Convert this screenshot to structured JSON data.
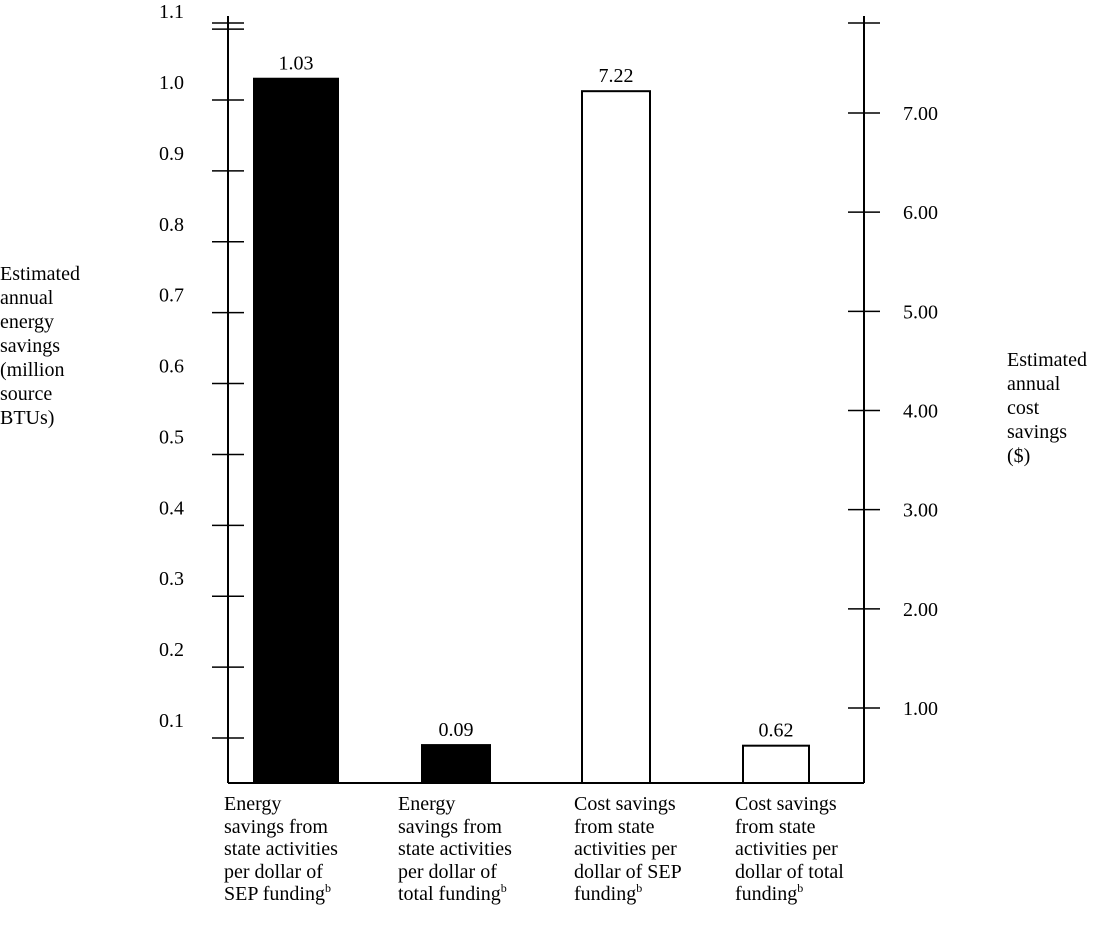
{
  "chart_data": {
    "type": "bar",
    "categories": [
      {
        "lines": [
          "Energy",
          "savings from",
          "state activities",
          "per dollar of"
        ],
        "last": "SEP funding",
        "sup": "b"
      },
      {
        "lines": [
          "Energy",
          "savings from",
          "state activities",
          "per dollar of"
        ],
        "last": "total funding",
        "sup": "b"
      },
      {
        "lines": [
          "Cost savings",
          "from state",
          "activities per",
          "dollar of SEP"
        ],
        "last": "funding",
        "sup": "b"
      },
      {
        "lines": [
          "Cost savings",
          "from state",
          "activities per",
          "dollar of total"
        ],
        "last": "funding",
        "sup": "b"
      }
    ],
    "values": [
      1.03,
      0.09,
      7.22,
      0.62
    ],
    "value_labels": [
      "1.03",
      "0.09",
      "7.22",
      "0.62"
    ],
    "bar_axis": [
      "left",
      "left",
      "right",
      "right"
    ],
    "bar_fill": [
      "#000000",
      "#000000",
      "#ffffff",
      "#ffffff"
    ],
    "left_axis": {
      "label": "Estimated\nannual\nenergy\nsavings\n(million\nsource\nBTUs)",
      "ticks": [
        0.1,
        0.2,
        0.3,
        0.4,
        0.5,
        0.6,
        0.7,
        0.8,
        0.9,
        1.0,
        1.1
      ],
      "tick_labels": [
        "0.1",
        "0.2",
        "0.3",
        "0.4",
        "0.5",
        "0.6",
        "0.7",
        "0.8",
        "0.9",
        "1.0",
        "1.1"
      ]
    },
    "right_axis": {
      "label": "Estimated\nannual\ncost\nsavings\n($)",
      "ticks": [
        1,
        2,
        3,
        4,
        5,
        6,
        7
      ],
      "tick_labels": [
        "1.00",
        "2.00",
        "3.00",
        "4.00",
        "5.00",
        "6.00",
        "7.00"
      ]
    },
    "grid": false,
    "legend": "none"
  }
}
